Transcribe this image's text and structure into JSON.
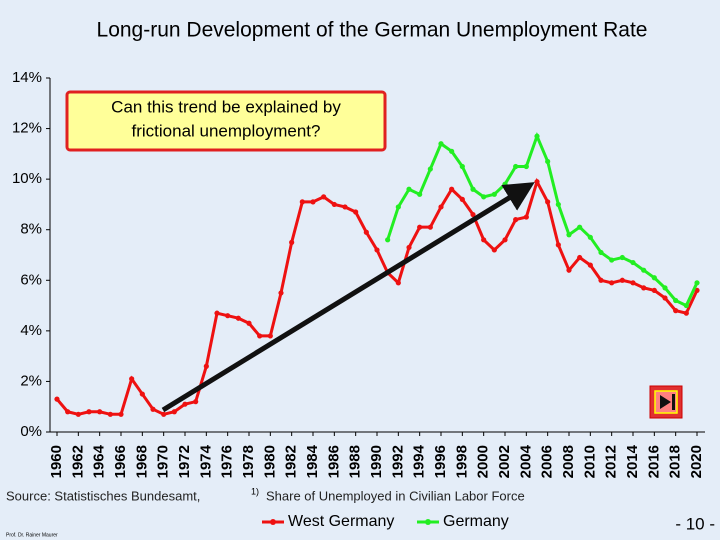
{
  "chart_data": {
    "type": "line",
    "title": "Long-run Development of the German Unemployment Rate",
    "annotation": [
      "Can this trend be explained by",
      "frictional unemployment?"
    ],
    "source": "Source: Statistisches Bundesamt,",
    "footnote_mark": "1)",
    "footnote": "Share of Unemployed in Civilian Labor Force",
    "author": "Prof. Dr. Rainer Maurer",
    "page_number": "- 10 -",
    "x": [
      1960,
      1961,
      1962,
      1963,
      1964,
      1965,
      1966,
      1967,
      1968,
      1969,
      1970,
      1971,
      1972,
      1973,
      1974,
      1975,
      1976,
      1977,
      1978,
      1979,
      1980,
      1981,
      1982,
      1983,
      1984,
      1985,
      1986,
      1987,
      1988,
      1989,
      1990,
      1991,
      1992,
      1993,
      1994,
      1995,
      1996,
      1997,
      1998,
      1999,
      2000,
      2001,
      2002,
      2003,
      2004,
      2005,
      2006,
      2007,
      2008,
      2009,
      2010,
      2011,
      2012,
      2013,
      2014,
      2015,
      2016,
      2017,
      2018,
      2019,
      2020
    ],
    "series": [
      {
        "name": "West Germany",
        "color": "#ee1111",
        "values": [
          1.3,
          0.8,
          0.7,
          0.8,
          0.8,
          0.7,
          0.7,
          2.1,
          1.5,
          0.9,
          0.7,
          0.8,
          1.1,
          1.2,
          2.6,
          4.7,
          4.6,
          4.5,
          4.3,
          3.8,
          3.8,
          5.5,
          7.5,
          9.1,
          9.1,
          9.3,
          9.0,
          8.9,
          8.7,
          7.9,
          7.2,
          6.3,
          5.9,
          7.3,
          8.1,
          8.1,
          8.9,
          9.6,
          9.2,
          8.6,
          7.6,
          7.2,
          7.6,
          8.4,
          8.5,
          9.9,
          9.1,
          7.4,
          6.4,
          6.9,
          6.6,
          6.0,
          5.9,
          6.0,
          5.9,
          5.7,
          5.6,
          5.3,
          4.8,
          4.7,
          5.6
        ]
      },
      {
        "name": "Germany",
        "color": "#22ee22",
        "values": [
          null,
          null,
          null,
          null,
          null,
          null,
          null,
          null,
          null,
          null,
          null,
          null,
          null,
          null,
          null,
          null,
          null,
          null,
          null,
          null,
          null,
          null,
          null,
          null,
          null,
          null,
          null,
          null,
          null,
          null,
          null,
          7.6,
          8.9,
          9.6,
          9.4,
          10.4,
          11.4,
          11.1,
          10.5,
          9.6,
          9.3,
          9.4,
          9.8,
          10.5,
          10.5,
          11.7,
          10.7,
          9.0,
          7.8,
          8.1,
          7.7,
          7.1,
          6.8,
          6.9,
          6.7,
          6.4,
          6.1,
          5.7,
          5.2,
          5.0,
          5.9
        ]
      }
    ],
    "xlim": [
      1960,
      2020
    ],
    "xticks": [
      1960,
      1962,
      1964,
      1966,
      1968,
      1970,
      1972,
      1974,
      1976,
      1978,
      1980,
      1982,
      1984,
      1986,
      1988,
      1990,
      1992,
      1994,
      1996,
      1998,
      2000,
      2002,
      2004,
      2006,
      2008,
      2010,
      2012,
      2014,
      2016,
      2018,
      2020
    ],
    "ylim": [
      0,
      14
    ],
    "yticks": [
      {
        "value": 0,
        "label": "0%"
      },
      {
        "value": 2,
        "label": "2%"
      },
      {
        "value": 4,
        "label": "4%"
      },
      {
        "value": 6,
        "label": "6%"
      },
      {
        "value": 8,
        "label": "8%"
      },
      {
        "value": 10,
        "label": "10%"
      },
      {
        "value": 12,
        "label": "12%"
      },
      {
        "value": 14,
        "label": "14%"
      }
    ],
    "grid": false
  }
}
